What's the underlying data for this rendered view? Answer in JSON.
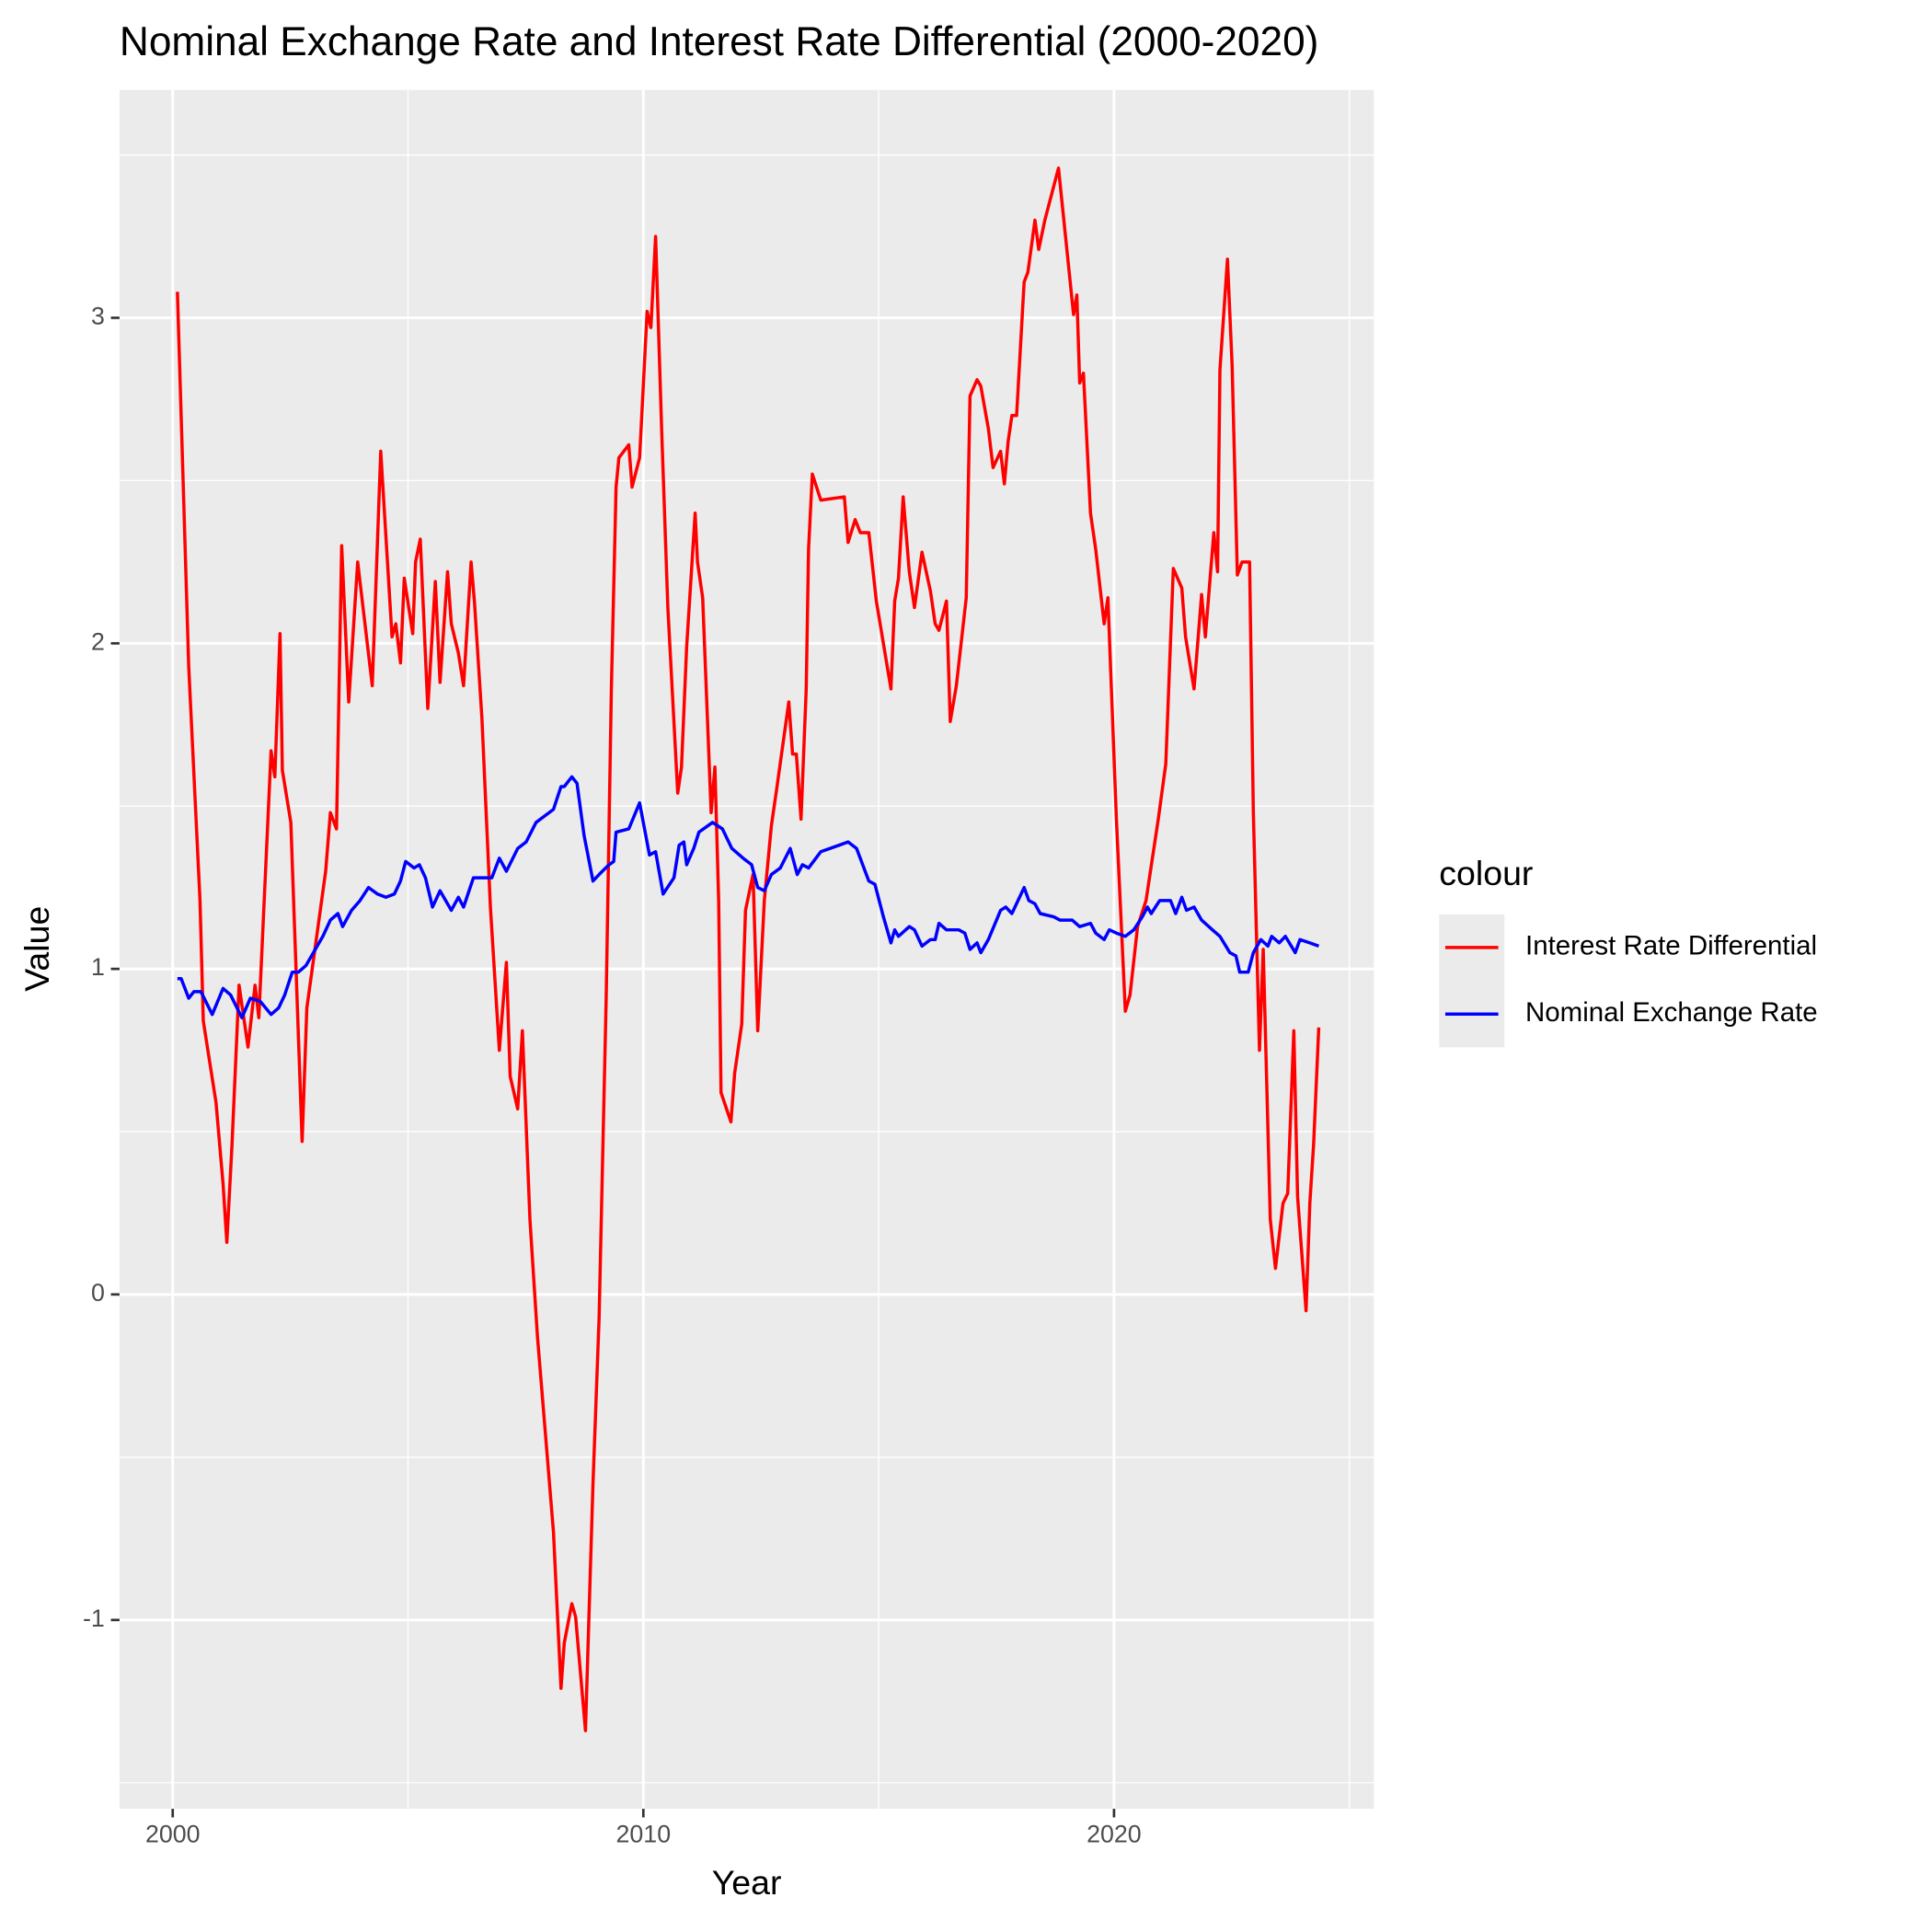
{
  "chart_data": {
    "type": "line",
    "title": "Nominal Exchange Rate and Interest Rate Differential (2000-2020)",
    "x_label": "Year",
    "y_label": "Value",
    "legend_title": "colour",
    "xlim": [
      1998.87,
      2025.52
    ],
    "xticks": [
      2000,
      2010,
      2020
    ],
    "ylim": [
      -1.58,
      3.7
    ],
    "yticks": [
      -1,
      0,
      1,
      2,
      3
    ],
    "grid": true,
    "legend_position": "right",
    "series": [
      {
        "name": "Interest Rate Differential",
        "color": "#ff0000",
        "x": [
          2000.1,
          2000.34,
          2000.58,
          2000.65,
          2000.92,
          2001.07,
          2001.15,
          2001.26,
          2001.41,
          2001.6,
          2001.75,
          2001.83,
          2002.09,
          2002.17,
          2002.28,
          2002.33,
          2002.51,
          2002.75,
          2002.85,
          2003.25,
          2003.35,
          2003.48,
          2003.59,
          2003.74,
          2003.93,
          2004.24,
          2004.42,
          2004.66,
          2004.74,
          2004.84,
          2004.92,
          2005.1,
          2005.16,
          2005.26,
          2005.42,
          2005.58,
          2005.68,
          2005.84,
          2005.92,
          2006.07,
          2006.18,
          2006.34,
          2006.41,
          2006.57,
          2006.75,
          2006.94,
          2007.09,
          2007.17,
          2007.33,
          2007.43,
          2007.59,
          2007.75,
          2008.09,
          2008.25,
          2008.32,
          2008.48,
          2008.56,
          2008.77,
          2008.93,
          2009.06,
          2009.21,
          2009.32,
          2009.42,
          2009.48,
          2009.69,
          2009.76,
          2009.92,
          2010.08,
          2010.16,
          2010.26,
          2010.39,
          2010.52,
          2010.73,
          2010.81,
          2010.92,
          2011.1,
          2011.15,
          2011.26,
          2011.44,
          2011.52,
          2011.6,
          2011.65,
          2011.86,
          2011.94,
          2012.09,
          2012.17,
          2012.33,
          2012.43,
          2012.57,
          2012.72,
          2012.83,
          2013.09,
          2013.17,
          2013.25,
          2013.35,
          2013.46,
          2013.51,
          2013.59,
          2013.77,
          2014.27,
          2014.35,
          2014.5,
          2014.61,
          2014.79,
          2014.95,
          2015.26,
          2015.34,
          2015.42,
          2015.52,
          2015.65,
          2015.76,
          2015.92,
          2016.1,
          2016.2,
          2016.28,
          2016.44,
          2016.52,
          2016.65,
          2016.86,
          2016.94,
          2017.09,
          2017.17,
          2017.33,
          2017.43,
          2017.59,
          2017.67,
          2017.75,
          2017.83,
          2017.93,
          2018.09,
          2018.17,
          2018.32,
          2018.4,
          2018.53,
          2018.82,
          2019.14,
          2019.21,
          2019.27,
          2019.35,
          2019.5,
          2019.61,
          2019.79,
          2019.87,
          2020.05,
          2020.24,
          2020.34,
          2020.5,
          2020.68,
          2020.94,
          2021.1,
          2021.26,
          2021.44,
          2021.52,
          2021.7,
          2021.86,
          2021.94,
          2022.12,
          2022.2,
          2022.25,
          2022.41,
          2022.51,
          2022.62,
          2022.72,
          2022.88,
          2022.96,
          2023.09,
          2023.17,
          2023.32,
          2023.43,
          2023.59,
          2023.69,
          2023.82,
          2023.9,
          2024.08,
          2024.16,
          2024.24,
          2024.35
        ],
        "values": [
          3.08,
          1.93,
          1.21,
          0.84,
          0.59,
          0.34,
          0.16,
          0.46,
          0.95,
          0.76,
          0.95,
          0.85,
          1.67,
          1.59,
          2.03,
          1.61,
          1.45,
          0.47,
          0.88,
          1.3,
          1.48,
          1.43,
          2.3,
          1.82,
          2.25,
          1.87,
          2.59,
          2.02,
          2.06,
          1.94,
          2.2,
          2.03,
          2.25,
          2.32,
          1.8,
          2.19,
          1.88,
          2.22,
          2.06,
          1.97,
          1.87,
          2.25,
          2.13,
          1.77,
          1.19,
          0.75,
          1.02,
          0.67,
          0.57,
          0.81,
          0.23,
          -0.13,
          -0.73,
          -1.21,
          -1.07,
          -0.95,
          -0.99,
          -1.34,
          -0.58,
          -0.07,
          0.91,
          1.86,
          2.48,
          2.57,
          2.61,
          2.48,
          2.57,
          3.02,
          2.97,
          3.25,
          2.65,
          2.11,
          1.54,
          1.62,
          1.99,
          2.4,
          2.25,
          2.14,
          1.48,
          1.62,
          1.21,
          0.62,
          0.53,
          0.68,
          0.83,
          1.18,
          1.29,
          0.81,
          1.21,
          1.44,
          1.55,
          1.82,
          1.66,
          1.66,
          1.46,
          1.86,
          2.29,
          2.52,
          2.44,
          2.45,
          2.31,
          2.38,
          2.34,
          2.34,
          2.13,
          1.86,
          2.13,
          2.2,
          2.45,
          2.22,
          2.11,
          2.28,
          2.16,
          2.06,
          2.04,
          2.13,
          1.76,
          1.87,
          2.14,
          2.76,
          2.81,
          2.79,
          2.66,
          2.54,
          2.59,
          2.49,
          2.62,
          2.7,
          2.7,
          3.11,
          3.14,
          3.3,
          3.21,
          3.3,
          3.46,
          3.01,
          3.07,
          2.8,
          2.83,
          2.4,
          2.29,
          2.06,
          2.14,
          1.46,
          0.87,
          0.92,
          1.13,
          1.21,
          1.46,
          1.63,
          2.23,
          2.17,
          2.02,
          1.86,
          2.15,
          2.02,
          2.34,
          2.22,
          2.84,
          3.18,
          2.85,
          2.21,
          2.25,
          2.25,
          1.48,
          0.75,
          1.06,
          0.23,
          0.08,
          0.28,
          0.31,
          0.81,
          0.3,
          -0.05,
          0.28,
          0.46,
          0.82
        ]
      },
      {
        "name": "Nominal Exchange Rate",
        "color": "#0000ff",
        "x": [
          2000.1,
          2000.18,
          2000.34,
          2000.45,
          2000.6,
          2000.84,
          2001.07,
          2001.23,
          2001.47,
          2001.65,
          2001.86,
          2002.09,
          2002.25,
          2002.38,
          2002.54,
          2002.67,
          2002.83,
          2003.19,
          2003.35,
          2003.51,
          2003.61,
          2003.8,
          2003.98,
          2004.16,
          2004.35,
          2004.53,
          2004.71,
          2004.84,
          2004.95,
          2005.13,
          2005.24,
          2005.37,
          2005.52,
          2005.68,
          2005.92,
          2006.07,
          2006.18,
          2006.39,
          2006.6,
          2006.78,
          2006.94,
          2007.09,
          2007.33,
          2007.51,
          2007.72,
          2008.09,
          2008.25,
          2008.32,
          2008.48,
          2008.59,
          2008.74,
          2008.93,
          2009.06,
          2009.27,
          2009.37,
          2009.42,
          2009.69,
          2009.92,
          2010.13,
          2010.26,
          2010.42,
          2010.65,
          2010.76,
          2010.86,
          2010.92,
          2011.07,
          2011.18,
          2011.47,
          2011.68,
          2011.88,
          2012.12,
          2012.3,
          2012.43,
          2012.57,
          2012.72,
          2012.91,
          2013.12,
          2013.27,
          2013.38,
          2013.51,
          2013.77,
          2014.16,
          2014.35,
          2014.53,
          2014.79,
          2014.92,
          2015.1,
          2015.26,
          2015.34,
          2015.42,
          2015.65,
          2015.76,
          2015.92,
          2016.1,
          2016.2,
          2016.28,
          2016.44,
          2016.7,
          2016.83,
          2016.94,
          2017.09,
          2017.17,
          2017.33,
          2017.59,
          2017.7,
          2017.83,
          2018.09,
          2018.19,
          2018.32,
          2018.43,
          2018.72,
          2018.85,
          2019.11,
          2019.27,
          2019.5,
          2019.61,
          2019.79,
          2019.9,
          2020.05,
          2020.24,
          2020.42,
          2020.6,
          2020.71,
          2020.79,
          2020.97,
          2021.2,
          2021.31,
          2021.44,
          2021.54,
          2021.7,
          2021.86,
          2022.09,
          2022.25,
          2022.46,
          2022.59,
          2022.67,
          2022.85,
          2022.96,
          2023.12,
          2023.27,
          2023.35,
          2023.51,
          2023.64,
          2023.85,
          2023.95,
          2024.16,
          2024.35
        ],
        "values": [
          0.97,
          0.97,
          0.91,
          0.93,
          0.93,
          0.86,
          0.94,
          0.92,
          0.85,
          0.91,
          0.9,
          0.86,
          0.88,
          0.92,
          0.99,
          0.99,
          1.01,
          1.1,
          1.15,
          1.17,
          1.13,
          1.18,
          1.21,
          1.25,
          1.23,
          1.22,
          1.23,
          1.27,
          1.33,
          1.31,
          1.32,
          1.28,
          1.19,
          1.24,
          1.18,
          1.22,
          1.19,
          1.28,
          1.28,
          1.28,
          1.34,
          1.3,
          1.37,
          1.39,
          1.45,
          1.49,
          1.56,
          1.56,
          1.59,
          1.57,
          1.41,
          1.27,
          1.29,
          1.32,
          1.33,
          1.42,
          1.43,
          1.51,
          1.35,
          1.36,
          1.23,
          1.28,
          1.38,
          1.39,
          1.32,
          1.37,
          1.42,
          1.45,
          1.43,
          1.37,
          1.34,
          1.32,
          1.25,
          1.24,
          1.29,
          1.31,
          1.37,
          1.29,
          1.32,
          1.31,
          1.36,
          1.38,
          1.39,
          1.37,
          1.27,
          1.26,
          1.16,
          1.08,
          1.12,
          1.1,
          1.13,
          1.12,
          1.07,
          1.09,
          1.09,
          1.14,
          1.12,
          1.12,
          1.11,
          1.06,
          1.08,
          1.05,
          1.09,
          1.18,
          1.19,
          1.17,
          1.25,
          1.21,
          1.2,
          1.17,
          1.16,
          1.15,
          1.15,
          1.13,
          1.14,
          1.11,
          1.09,
          1.12,
          1.11,
          1.1,
          1.12,
          1.16,
          1.19,
          1.17,
          1.21,
          1.21,
          1.17,
          1.22,
          1.18,
          1.19,
          1.15,
          1.12,
          1.1,
          1.05,
          1.04,
          0.99,
          0.99,
          1.05,
          1.09,
          1.07,
          1.1,
          1.08,
          1.1,
          1.05,
          1.09,
          1.08,
          1.07
        ]
      }
    ]
  }
}
